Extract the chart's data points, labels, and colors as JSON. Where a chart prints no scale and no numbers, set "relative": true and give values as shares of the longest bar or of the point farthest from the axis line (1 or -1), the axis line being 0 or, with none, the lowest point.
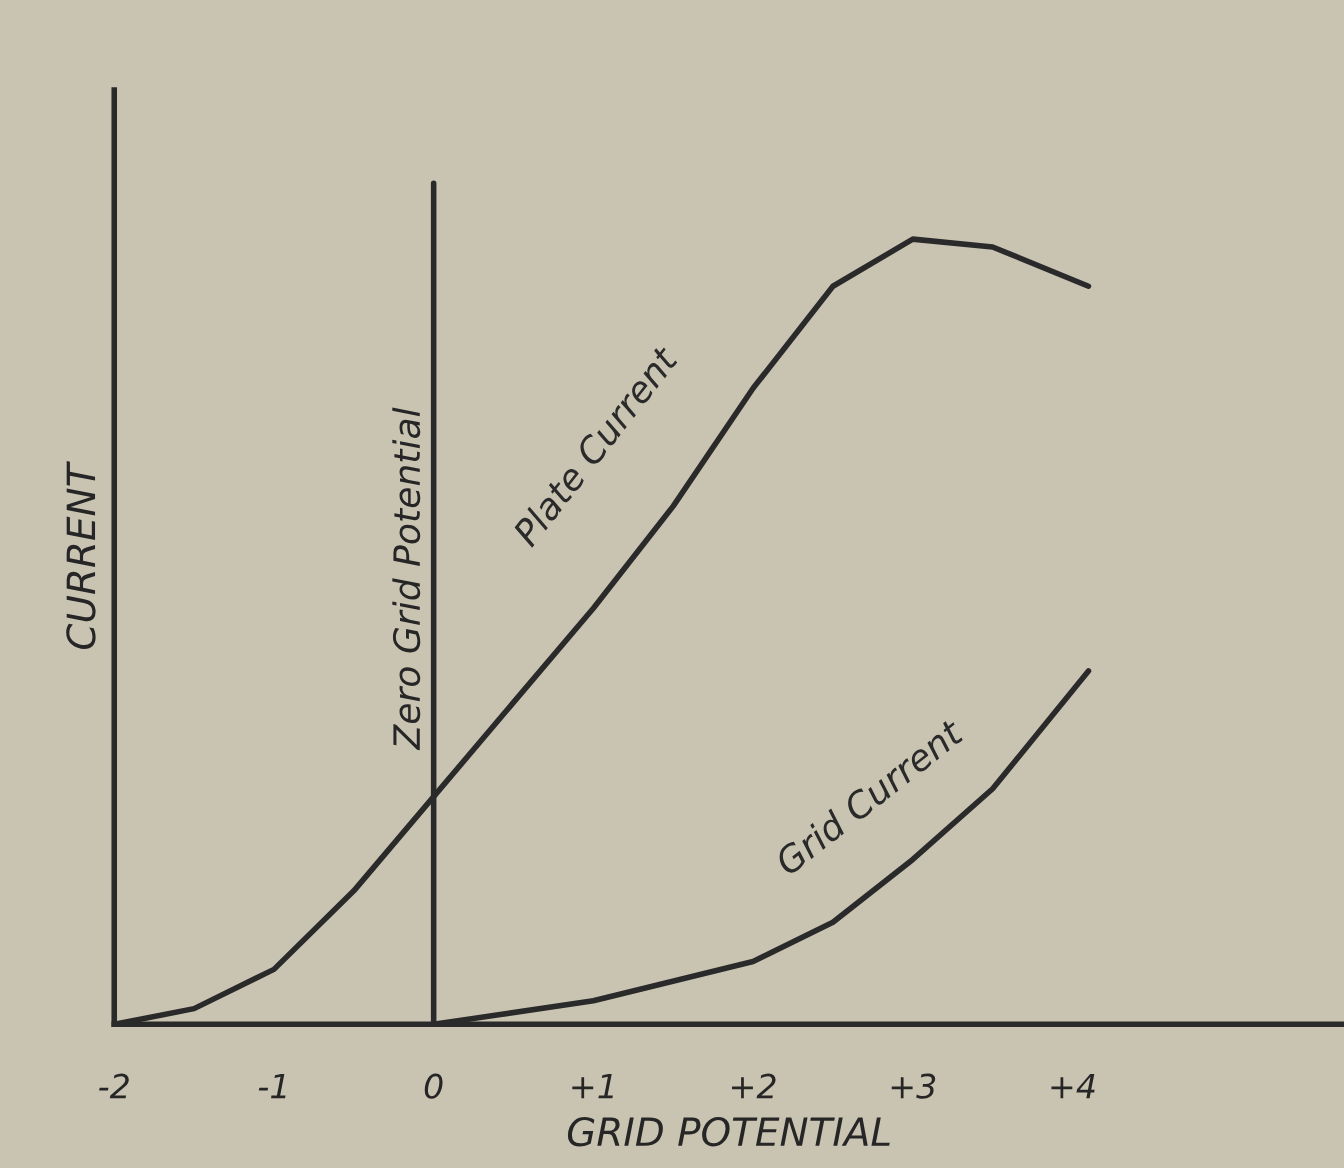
{
  "chart_data": {
    "type": "line",
    "relative": true,
    "xlabel": "GRID POTENTIAL",
    "ylabel": "CURRENT",
    "xlim": [
      -2,
      5.7
    ],
    "xticks": [
      -2,
      -1,
      0,
      {
        "value": 1,
        "label": "+1"
      },
      {
        "value": 2,
        "label": "+2"
      },
      {
        "value": 3,
        "label": "+3"
      },
      {
        "value": 4,
        "label": "+4"
      }
    ],
    "grid": false,
    "legend": false,
    "marker": "none",
    "line_style": "solid",
    "ref_lines": [
      {
        "axis": "x",
        "value": 0,
        "label": "Zero Grid Potential",
        "color": "#2a2a2a"
      }
    ],
    "series": [
      {
        "name": "Plate Current",
        "color": "#2a2a2a",
        "x": [
          -2,
          -1.5,
          -1,
          -0.5,
          0,
          0.5,
          1,
          1.5,
          2,
          2.5,
          3,
          3.5,
          4.1
        ],
        "values": [
          0,
          0.02,
          0.07,
          0.17,
          0.29,
          0.41,
          0.53,
          0.66,
          0.81,
          0.94,
          1.0,
          0.99,
          0.94
        ]
      },
      {
        "name": "Grid Current",
        "color": "#2a2a2a",
        "x": [
          0,
          1,
          2,
          2.5,
          3,
          3.5,
          4.1
        ],
        "values": [
          0,
          0.03,
          0.08,
          0.13,
          0.21,
          0.3,
          0.45
        ]
      }
    ]
  }
}
